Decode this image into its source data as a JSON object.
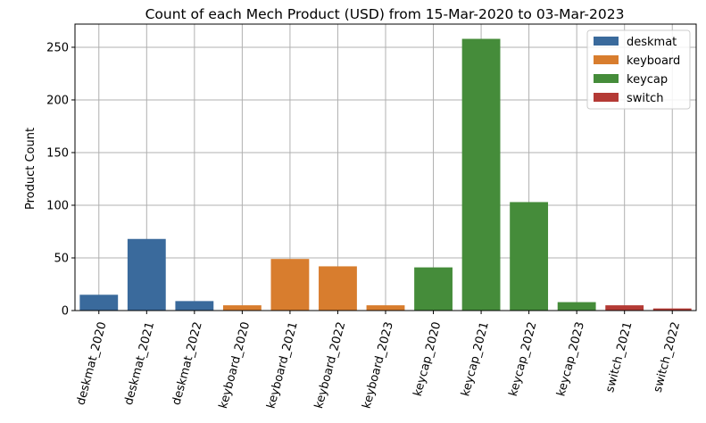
{
  "chart_data": {
    "type": "bar",
    "title": "Count of each Mech Product (USD) from 15-Mar-2020 to 03-Mar-2023",
    "xlabel": "",
    "ylabel": "Product Count",
    "ylim": [
      0,
      272
    ],
    "yticks": [
      0,
      50,
      100,
      150,
      200,
      250
    ],
    "grid": true,
    "legend_position": "top-right",
    "categories": [
      "deskmat_2020",
      "deskmat_2021",
      "deskmat_2022",
      "keyboard_2020",
      "keyboard_2021",
      "keyboard_2022",
      "keyboard_2023",
      "keycap_2020",
      "keycap_2021",
      "keycap_2022",
      "keycap_2023",
      "switch_2021",
      "switch_2022"
    ],
    "values": [
      15,
      68,
      9,
      5,
      49,
      42,
      5,
      41,
      258,
      103,
      8,
      5,
      2
    ],
    "groups": [
      "deskmat",
      "deskmat",
      "deskmat",
      "keyboard",
      "keyboard",
      "keyboard",
      "keyboard",
      "keycap",
      "keycap",
      "keycap",
      "keycap",
      "switch",
      "switch"
    ],
    "legend": [
      {
        "name": "deskmat",
        "color": "#3a6a9c"
      },
      {
        "name": "keyboard",
        "color": "#d87d2e"
      },
      {
        "name": "keycap",
        "color": "#458c3a"
      },
      {
        "name": "switch",
        "color": "#b43a35"
      }
    ]
  }
}
